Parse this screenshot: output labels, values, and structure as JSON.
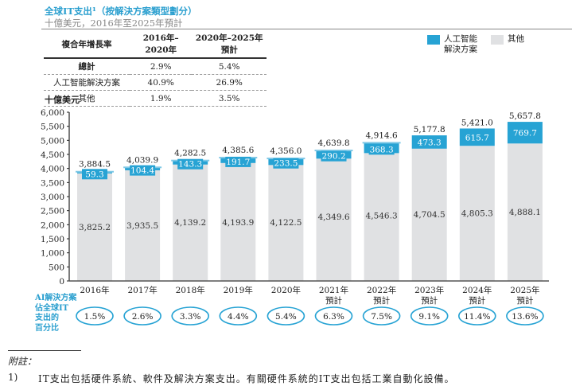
{
  "header": {
    "title": "全球IT支出¹（按解決方案類型劃分）",
    "subtitle": "十億美元，2016年至2025年預計"
  },
  "cagr_table": {
    "headers": [
      "複合年增長率",
      "2016年–2020年",
      "2020年–2025年預計"
    ],
    "rows": [
      [
        "總計",
        "2.9%",
        "5.4%"
      ],
      [
        "人工智能解決方案",
        "40.9%",
        "26.9%"
      ],
      [
        "其他",
        "1.9%",
        "3.5%"
      ]
    ]
  },
  "legend": {
    "ai": "人工智能\n解決方案",
    "ai_line1": "人工智能",
    "ai_line2": "解決方案",
    "other": "其他"
  },
  "colors": {
    "ai": "#27a3d4",
    "other": "#e0e1e3",
    "accent_text": "#2a9fcf"
  },
  "ai_share": {
    "label_lines": [
      "AI解決方案",
      "佔全球IT",
      "支出的",
      "百分比"
    ],
    "values": [
      "1.5%",
      "2.6%",
      "3.3%",
      "4.4%",
      "5.4%",
      "6.3%",
      "7.5%",
      "9.1%",
      "11.4%",
      "13.6%"
    ]
  },
  "notes": {
    "title": "附註：",
    "items": [
      {
        "num": "1)",
        "text": "IT支出包括硬件系統、軟件及解決方案支出。有關硬件系統的IT支出包括工業自動化設備。"
      }
    ]
  },
  "chart_data": {
    "type": "bar",
    "stacked": true,
    "title": "全球IT支出（按解決方案類型劃分）",
    "ylabel": "十億美元",
    "xlabel": "",
    "ylim": [
      0,
      6000
    ],
    "yticks": [
      0,
      500,
      1000,
      1500,
      2000,
      2500,
      3000,
      3500,
      4000,
      4500,
      5000,
      5500,
      6000
    ],
    "ytick_labels": [
      "0",
      "500",
      "1,000",
      "1,500",
      "2,000",
      "2,500",
      "3,000",
      "3,500",
      "4,000",
      "4,500",
      "5,000",
      "5,500",
      "6,000"
    ],
    "categories": [
      "2016年",
      "2017年",
      "2018年",
      "2019年",
      "2020年",
      "2021年\n預計",
      "2022年\n預計",
      "2023年\n預計",
      "2024年\n預計",
      "2025年\n預計"
    ],
    "category_lines": [
      [
        "2016年"
      ],
      [
        "2017年"
      ],
      [
        "2018年"
      ],
      [
        "2019年"
      ],
      [
        "2020年"
      ],
      [
        "2021年",
        "預計"
      ],
      [
        "2022年",
        "預計"
      ],
      [
        "2023年",
        "預計"
      ],
      [
        "2024年",
        "預計"
      ],
      [
        "2025年",
        "預計"
      ]
    ],
    "series": [
      {
        "name": "其他",
        "values": [
          3825.2,
          3935.5,
          4139.2,
          4193.9,
          4122.5,
          4349.6,
          4546.3,
          4704.5,
          4805.3,
          4888.1
        ],
        "labels": [
          "3,825.2",
          "3,935.5",
          "4,139.2",
          "4,193.9",
          "4,122.5",
          "4,349.6",
          "4,546.3",
          "4,704.5",
          "4,805.3",
          "4,888.1"
        ]
      },
      {
        "name": "人工智能解決方案",
        "values": [
          59.3,
          104.4,
          143.3,
          191.7,
          233.5,
          290.2,
          368.3,
          473.3,
          615.7,
          769.7
        ],
        "labels": [
          "59.3",
          "104.4",
          "143.3",
          "191.7",
          "233.5",
          "290.2",
          "368.3",
          "473.3",
          "615.7",
          "769.7"
        ]
      }
    ],
    "totals": [
      3884.5,
      4039.9,
      4282.5,
      4385.6,
      4356.0,
      4639.8,
      4914.6,
      5177.8,
      5421.0,
      5657.8
    ],
    "total_labels": [
      "3,884.5",
      "4,039.9",
      "4,282.5",
      "4,385.6",
      "4,356.0",
      "4,639.8",
      "4,914.6",
      "5,177.8",
      "5,421.0",
      "5,657.8"
    ],
    "legend": [
      "人工智能解決方案",
      "其他"
    ],
    "legend_position": "top-right",
    "grid": false
  }
}
